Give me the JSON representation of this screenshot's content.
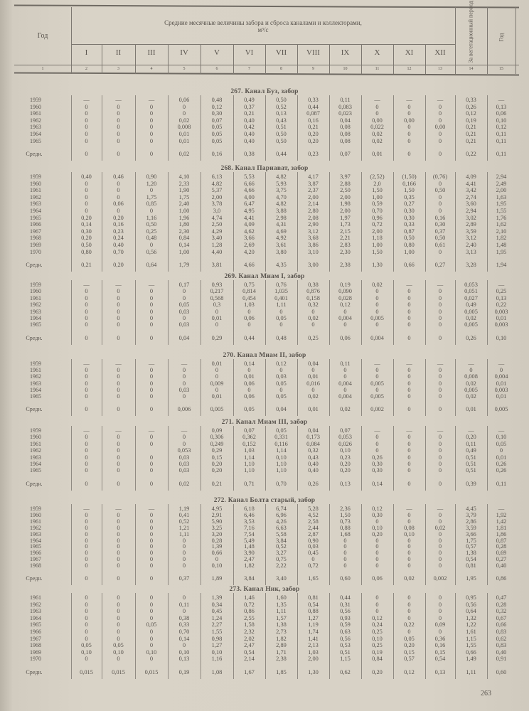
{
  "header": {
    "year_label": "Год",
    "title": "Средние месячные величины забора и сброса каналами и коллекторами, м³/с",
    "months": [
      "I",
      "II",
      "III",
      "IV",
      "V",
      "VI",
      "VII",
      "VIII",
      "IX",
      "X",
      "XI",
      "XII"
    ],
    "veg_period_label": "За вегетационный период (IV—IX)",
    "year_total_label": "Год",
    "column_numbers": [
      "1",
      "2",
      "3",
      "4",
      "5",
      "6",
      "7",
      "8",
      "9",
      "10",
      "11",
      "12",
      "13",
      "14",
      "15"
    ]
  },
  "sections": [
    {
      "title": "267. Канал Буз, забор",
      "rows": [
        [
          "1959",
          "—",
          "—",
          "—",
          "0,06",
          "0,48",
          "0,49",
          "0,50",
          "0,33",
          "0,11",
          "—",
          "—",
          "—",
          "0,33",
          "—"
        ],
        [
          "1960",
          "0",
          "0",
          "0",
          "0",
          "0,12",
          "0,37",
          "0,52",
          "0,44",
          "0,083",
          "0",
          "0",
          "0",
          "0,26",
          "0,13"
        ],
        [
          "1961",
          "0",
          "0",
          "0",
          "0",
          "0,30",
          "0,21",
          "0,13",
          "0,087",
          "0,023",
          "0",
          "0",
          "0",
          "0,12",
          "0,06"
        ],
        [
          "1962",
          "0",
          "0",
          "0",
          "0,02",
          "0,07",
          "0,40",
          "0,43",
          "0,16",
          "0,04",
          "0,00",
          "0,00",
          "0",
          "0,19",
          "0,10"
        ],
        [
          "1963",
          "0",
          "0",
          "0",
          "0,008",
          "0,05",
          "0,42",
          "0,51",
          "0,21",
          "0,08",
          "0,022",
          "0",
          "0,00",
          "0,21",
          "0,12"
        ],
        [
          "1964",
          "0",
          "0",
          "0",
          "0,01",
          "0,05",
          "0,40",
          "0,50",
          "0,20",
          "0,08",
          "0,02",
          "0",
          "0",
          "0,21",
          "0,11"
        ],
        [
          "1965",
          "0",
          "0",
          "0",
          "0,01",
          "0,05",
          "0,40",
          "0,50",
          "0,20",
          "0,08",
          "0,02",
          "0",
          "0",
          "0,21",
          "0,11"
        ]
      ],
      "mean": [
        "Средн.",
        "0",
        "0",
        "0",
        "0,02",
        "0,16",
        "0,38",
        "0,44",
        "0,23",
        "0,07",
        "0,01",
        "0",
        "0",
        "0,22",
        "0,11"
      ]
    },
    {
      "title": "268. Канал Парнават, забор",
      "rows": [
        [
          "1959",
          "0,40",
          "0,46",
          "0,90",
          "4,10",
          "6,13",
          "5,53",
          "4,82",
          "4,17",
          "3,97",
          "(2,52)",
          "(1,50)",
          "(0,76)",
          "4,09",
          "2,94"
        ],
        [
          "1960",
          "0",
          "0",
          "1,20",
          "2,33",
          "4,82",
          "6,66",
          "5,93",
          "3,87",
          "2,88",
          "2,0",
          "0,166",
          "0",
          "4,41",
          "2,49"
        ],
        [
          "1961",
          "0",
          "0",
          "0",
          "1,90",
          "5,37",
          "4,66",
          "3,75",
          "2,37",
          "2,50",
          "1,50",
          "1,50",
          "0,50",
          "3,42",
          "2,00"
        ],
        [
          "1962",
          "0",
          "0",
          "1,75",
          "1,75",
          "2,00",
          "4,00",
          "4,70",
          "2,00",
          "2,00",
          "1,00",
          "0,35",
          "0",
          "2,74",
          "1,63"
        ],
        [
          "1963",
          "0",
          "0,06",
          "0,85",
          "2,40",
          "3,78",
          "6,47",
          "4,82",
          "2,14",
          "1,98",
          "0,59",
          "0,27",
          "0",
          "3,60",
          "1,95"
        ],
        [
          "1964",
          "0",
          "0",
          "0",
          "1,00",
          "3,0",
          "4,95",
          "3,88",
          "2,80",
          "2,00",
          "0,70",
          "0,30",
          "0",
          "2,94",
          "1,55"
        ],
        [
          "1965",
          "0,20",
          "0,20",
          "1,16",
          "1,96",
          "4,74",
          "4,41",
          "2,98",
          "2,08",
          "1,97",
          "0,96",
          "0,30",
          "0,16",
          "3,02",
          "1,76"
        ],
        [
          "1966",
          "0,14",
          "0,16",
          "0,50",
          "1,80",
          "2,50",
          "4,09",
          "4,31",
          "2,90",
          "1,73",
          "0,72",
          "0,33",
          "0,30",
          "2,89",
          "1,62"
        ],
        [
          "1967",
          "0,30",
          "0,23",
          "0,25",
          "2,30",
          "4,29",
          "4,62",
          "4,69",
          "3,12",
          "2,15",
          "2,00",
          "0,87",
          "0,37",
          "3,59",
          "2,10"
        ],
        [
          "1968",
          "0,20",
          "0,24",
          "0,48",
          "0,84",
          "3,40",
          "3,66",
          "4,92",
          "3,68",
          "2,21",
          "1,18",
          "0,50",
          "0,50",
          "3,12",
          "1,82"
        ],
        [
          "1969",
          "0,50",
          "0,40",
          "0",
          "0,14",
          "1,28",
          "2,69",
          "3,61",
          "3,86",
          "2,83",
          "1,00",
          "0,80",
          "0,61",
          "2,40",
          "1,48"
        ],
        [
          "1970",
          "0,80",
          "0,70",
          "0,56",
          "1,00",
          "4,40",
          "4,20",
          "3,80",
          "3,10",
          "2,30",
          "1,50",
          "1,00",
          "0",
          "3,13",
          "1,95"
        ]
      ],
      "mean": [
        "Средн.",
        "0,21",
        "0,20",
        "0,64",
        "1,79",
        "3,81",
        "4,66",
        "4,35",
        "3,00",
        "2,38",
        "1,30",
        "0,66",
        "0,27",
        "3,28",
        "1,94"
      ]
    },
    {
      "title": "269. Канал Миам I, забор",
      "rows": [
        [
          "1959",
          "—",
          "—",
          "—",
          "0,17",
          "0,93",
          "0,75",
          "0,76",
          "0,38",
          "0,19",
          "0,02",
          "—",
          "—",
          "0,053",
          "—"
        ],
        [
          "1960",
          "0",
          "0",
          "0",
          "0",
          "0,217",
          "0,814",
          "1,035",
          "0,876",
          "0,090",
          "0",
          "0",
          "0",
          "0,051",
          "0,25"
        ],
        [
          "1961",
          "0",
          "0",
          "0",
          "0",
          "0,568",
          "0,454",
          "0,401",
          "0,158",
          "0,028",
          "0",
          "0",
          "0",
          "0,027",
          "0,13"
        ],
        [
          "1962",
          "0",
          "0",
          "0",
          "0,05",
          "0,3",
          "1,03",
          "1,11",
          "0,32",
          "0,12",
          "0",
          "0",
          "0",
          "0,49",
          "0,22"
        ],
        [
          "1963",
          "0",
          "0",
          "0",
          "0,03",
          "0",
          "0",
          "0",
          "0",
          "0",
          "0",
          "0",
          "0",
          "0,005",
          "0,003"
        ],
        [
          "1964",
          "0",
          "0",
          "0",
          "0",
          "0,01",
          "0,06",
          "0,05",
          "0,02",
          "0,004",
          "0,005",
          "0",
          "0",
          "0,02",
          "0,01"
        ],
        [
          "1965",
          "0",
          "0",
          "0",
          "0,03",
          "0",
          "0",
          "0",
          "0",
          "0",
          "0",
          "0",
          "0",
          "0,005",
          "0,003"
        ]
      ],
      "mean": [
        "Средн.",
        "0",
        "0",
        "0",
        "0,04",
        "0,29",
        "0,44",
        "0,48",
        "0,25",
        "0,06",
        "0,004",
        "0",
        "0",
        "0,26",
        "0,10"
      ]
    },
    {
      "title": "270. Канал Миам II, забор",
      "rows": [
        [
          "1959",
          "—",
          "—",
          "—",
          "—",
          "0,01",
          "0,14",
          "0,12",
          "0,04",
          "0,11",
          "—",
          "—",
          "—",
          "—",
          "—"
        ],
        [
          "1961",
          "0",
          "0",
          "0",
          "0",
          "0",
          "0",
          "0",
          "0",
          "0",
          "0",
          "0",
          "0",
          "0",
          "0"
        ],
        [
          "1962",
          "0",
          "0",
          "0",
          "0",
          "0",
          "0,01",
          "0,03",
          "0,01",
          "0",
          "0",
          "0",
          "0",
          "0,008",
          "0,004"
        ],
        [
          "1963",
          "0",
          "0",
          "0",
          "0",
          "0,009",
          "0,06",
          "0,05",
          "0,016",
          "0,004",
          "0,005",
          "0",
          "0",
          "0,02",
          "0,01"
        ],
        [
          "1964",
          "0",
          "0",
          "0",
          "0,03",
          "0",
          "0",
          "0",
          "0",
          "0",
          "0",
          "0",
          "0",
          "0,005",
          "0,003"
        ],
        [
          "1965",
          "0",
          "0",
          "0",
          "0",
          "0,01",
          "0,06",
          "0,05",
          "0,02",
          "0,004",
          "0,005",
          "0",
          "0",
          "0,02",
          "0,01"
        ]
      ],
      "mean": [
        "Средн.",
        "0",
        "0",
        "0",
        "0,006",
        "0,005",
        "0,05",
        "0,04",
        "0,01",
        "0,02",
        "0,002",
        "0",
        "0",
        "0,01",
        "0,005"
      ]
    },
    {
      "title": "271. Канал Миам III, забор",
      "rows": [
        [
          "1959",
          "—",
          "—",
          "—",
          "—",
          "0,09",
          "0,07",
          "0,05",
          "0,04",
          "0,07",
          "—",
          "—",
          "—",
          "—",
          "—"
        ],
        [
          "1960",
          "0",
          "0",
          "0",
          "0",
          "0,306",
          "0,362",
          "0,331",
          "0,173",
          "0,053",
          "0",
          "0",
          "0",
          "0,20",
          "0,10"
        ],
        [
          "1961",
          "0",
          "0",
          "0",
          "0",
          "0,249",
          "0,152",
          "0,116",
          "0,084",
          "0,026",
          "0",
          "0",
          "0",
          "0,11",
          "0,05"
        ],
        [
          "1962",
          "0",
          "0",
          "",
          "0,053",
          "0,29",
          "1,03",
          "1,14",
          "0,32",
          "0,10",
          "0",
          "0",
          "0",
          "0,49",
          "0"
        ],
        [
          "1963",
          "0",
          "0",
          "0",
          "0,03",
          "0,15",
          "1,14",
          "0,10",
          "0,43",
          "0,23",
          "0,26",
          "0",
          "0",
          "0,51",
          "0,01"
        ],
        [
          "1964",
          "0",
          "0",
          "0",
          "0,03",
          "0,20",
          "1,10",
          "1,10",
          "0,40",
          "0,20",
          "0,30",
          "0",
          "0",
          "0,51",
          "0,26"
        ],
        [
          "1965",
          "0",
          "0",
          "0",
          "0,03",
          "0,20",
          "1,10",
          "1,10",
          "0,40",
          "0,20",
          "0,30",
          "0",
          "0",
          "0,51",
          "0,26"
        ]
      ],
      "mean": [
        "Средн.",
        "0",
        "0",
        "0",
        "0,02",
        "0,21",
        "0,71",
        "0,70",
        "0,26",
        "0,13",
        "0,14",
        "0",
        "0",
        "0,39",
        "0,11"
      ]
    },
    {
      "title": "272. Канал Болта старый, забор",
      "rows": [
        [
          "1959",
          "—",
          "—",
          "—",
          "1,19",
          "4,95",
          "6,18",
          "6,74",
          "5,28",
          "2,36",
          "0,12",
          "—",
          "—",
          "4,45",
          "—"
        ],
        [
          "1960",
          "0",
          "0",
          "0",
          "0,41",
          "2,91",
          "6,46",
          "6,96",
          "4,52",
          "1,50",
          "0,30",
          "0",
          "0",
          "3,79",
          "1,92"
        ],
        [
          "1961",
          "0",
          "0",
          "0",
          "0,52",
          "5,90",
          "3,53",
          "4,26",
          "2,58",
          "0,73",
          "0",
          "0",
          "0",
          "2,86",
          "1,42"
        ],
        [
          "1962",
          "0",
          "0",
          "0",
          "1,21",
          "3,25",
          "7,16",
          "6,63",
          "2,44",
          "0,88",
          "0,10",
          "0,08",
          "0,02",
          "3,59",
          "1,81"
        ],
        [
          "1963",
          "0",
          "0",
          "0",
          "1,11",
          "3,20",
          "7,54",
          "5,58",
          "2,87",
          "1,68",
          "0,20",
          "0,10",
          "0",
          "3,66",
          "1,86"
        ],
        [
          "1964",
          "0",
          "0",
          "0",
          "0",
          "0,28",
          "5,49",
          "3,84",
          "0,90",
          "0",
          "0",
          "0",
          "0",
          "1,75",
          "0,87"
        ],
        [
          "1965",
          "0",
          "0",
          "0",
          "0",
          "1,39",
          "1,48",
          "0,52",
          "0,03",
          "0",
          "0",
          "0",
          "0",
          "0,57",
          "0,28"
        ],
        [
          "1966",
          "0",
          "0",
          "0",
          "0",
          "0,66",
          "3,90",
          "3,27",
          "0,45",
          "0",
          "0",
          "0",
          "0",
          "1,38",
          "0,69"
        ],
        [
          "1967",
          "0",
          "0",
          "0",
          "0",
          "0",
          "2,47",
          "0,75",
          "0",
          "0",
          "0",
          "0",
          "0",
          "0,54",
          "0,27"
        ],
        [
          "1968",
          "0",
          "0",
          "0",
          "0",
          "0,10",
          "1,82",
          "2,22",
          "0,72",
          "0",
          "0",
          "0",
          "0",
          "0,81",
          "0,40"
        ]
      ],
      "mean": [
        "Средн.",
        "0",
        "0",
        "0",
        "0,37",
        "1,89",
        "3,84",
        "3,40",
        "1,65",
        "0,60",
        "0,06",
        "0,02",
        "0,002",
        "1,95",
        "0,86"
      ]
    },
    {
      "title": "273. Канал Ник, забор",
      "rows": [
        [
          "1961",
          "0",
          "0",
          "0",
          "0",
          "1,39",
          "1,46",
          "1,60",
          "0,81",
          "0,44",
          "0",
          "0",
          "0",
          "0,95",
          "0,47"
        ],
        [
          "1962",
          "0",
          "0",
          "0",
          "0,11",
          "0,34",
          "0,72",
          "1,35",
          "0,54",
          "0,31",
          "0",
          "0",
          "0",
          "0,56",
          "0,28"
        ],
        [
          "1963",
          "0",
          "0",
          "0",
          "0",
          "0,45",
          "0,86",
          "1,11",
          "0,88",
          "0,56",
          "0",
          "0",
          "0",
          "0,64",
          "0,32"
        ],
        [
          "1964",
          "0",
          "0",
          "0",
          "0,38",
          "1,24",
          "2,55",
          "1,57",
          "1,27",
          "0,93",
          "0,12",
          "0",
          "0",
          "1,32",
          "0,67"
        ],
        [
          "1965",
          "0",
          "0",
          "0,05",
          "0,33",
          "2,27",
          "1,58",
          "1,38",
          "1,19",
          "0,59",
          "0,24",
          "0,22",
          "0,09",
          "1,22",
          "0,66"
        ],
        [
          "1966",
          "0",
          "0",
          "0",
          "0,70",
          "1,55",
          "2,32",
          "2,73",
          "1,74",
          "0,63",
          "0,25",
          "0",
          "0",
          "1,61",
          "0,83"
        ],
        [
          "1967",
          "0",
          "0",
          "0",
          "0,14",
          "0,98",
          "2,02",
          "1,82",
          "1,41",
          "0,56",
          "0,10",
          "0,05",
          "0,36",
          "1,15",
          "0,62"
        ],
        [
          "1968",
          "0,05",
          "0,05",
          "0",
          "0",
          "1,27",
          "2,47",
          "2,89",
          "2,13",
          "0,53",
          "0,25",
          "0,20",
          "0,16",
          "1,55",
          "0,83"
        ],
        [
          "1969",
          "0,10",
          "0,10",
          "0,10",
          "0,10",
          "0,10",
          "0,54",
          "1,71",
          "1,03",
          "0,51",
          "0,19",
          "0,15",
          "0,15",
          "0,66",
          "0,40"
        ],
        [
          "1970",
          "0",
          "0",
          "0",
          "0,13",
          "1,16",
          "2,14",
          "2,38",
          "2,00",
          "1,15",
          "0,84",
          "0,57",
          "0,54",
          "1,49",
          "0,91"
        ]
      ],
      "mean": [
        "Средн.",
        "0,015",
        "0,015",
        "0,015",
        "0,19",
        "1,08",
        "1,67",
        "1,85",
        "1,30",
        "0,62",
        "0,20",
        "0,12",
        "0,13",
        "1,11",
        "0,60"
      ]
    }
  ],
  "page_number": "263"
}
